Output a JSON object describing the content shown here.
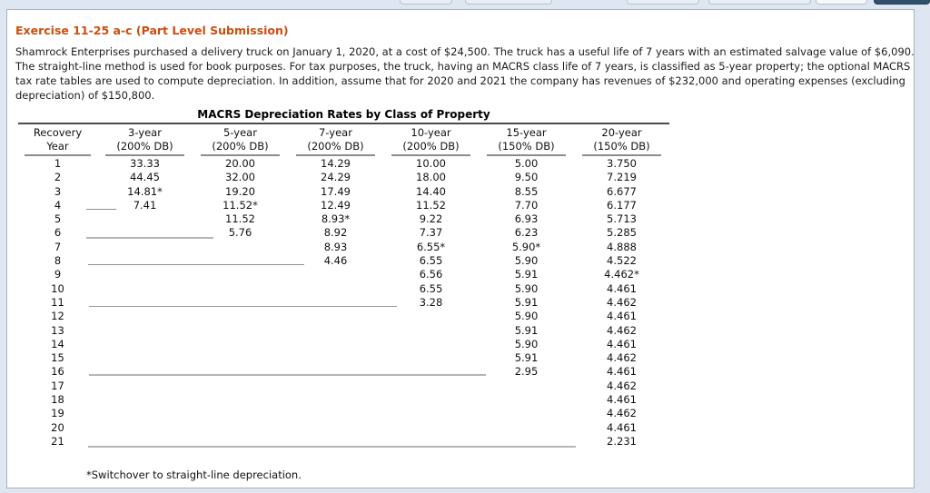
{
  "exercise": {
    "title": "Exercise 11-25 a-c (Part Level Submission)",
    "description": "Shamrock Enterprises purchased a delivery truck on January 1, 2020, at a cost of $24,500. The truck has a useful life of 7 years with an estimated salvage value of $6,090. The straight-line method is used for book purposes. For tax purposes, the truck, having an MACRS class life of 7 years, is classified as 5-year property; the optional MACRS tax rate tables are used to compute depreciation. In addition, assume that for 2020 and 2021 the company has revenues of $232,000 and operating expenses (excluding depreciation) of $150,800."
  },
  "table": {
    "title": "MACRS Depreciation Rates by Class of Property",
    "columns": [
      {
        "line1": "Recovery",
        "line2": "Year"
      },
      {
        "line1": "3-year",
        "line2": "(200% DB)"
      },
      {
        "line1": "5-year",
        "line2": "(200% DB)"
      },
      {
        "line1": "7-year",
        "line2": "(200% DB)"
      },
      {
        "line1": "10-year",
        "line2": "(200% DB)"
      },
      {
        "line1": "15-year",
        "line2": "(150% DB)"
      },
      {
        "line1": "20-year",
        "line2": "(150% DB)"
      }
    ],
    "rows": [
      {
        "year": "1",
        "values": [
          "33.33",
          "20.00",
          "14.29",
          "10.00",
          "5.00",
          "3.750"
        ]
      },
      {
        "year": "2",
        "values": [
          "44.45",
          "32.00",
          "24.29",
          "18.00",
          "9.50",
          "7.219"
        ]
      },
      {
        "year": "3",
        "values": [
          "14.81*",
          "19.20",
          "17.49",
          "14.40",
          "8.55",
          "6.677"
        ]
      },
      {
        "year": "4",
        "values": [
          "7.41",
          "11.52*",
          "12.49",
          "11.52",
          "7.70",
          "6.177"
        ]
      },
      {
        "year": "5",
        "values": [
          "",
          "11.52",
          "8.93*",
          "9.22",
          "6.93",
          "5.713"
        ]
      },
      {
        "year": "6",
        "values": [
          "",
          "5.76",
          "8.92",
          "7.37",
          "6.23",
          "5.285"
        ]
      },
      {
        "year": "7",
        "values": [
          "",
          "",
          "8.93",
          "6.55*",
          "5.90*",
          "4.888"
        ]
      },
      {
        "year": "8",
        "values": [
          "",
          "",
          "4.46",
          "6.55",
          "5.90",
          "4.522"
        ]
      },
      {
        "year": "9",
        "values": [
          "",
          "",
          "",
          "6.56",
          "5.91",
          "4.462*"
        ]
      },
      {
        "year": "10",
        "values": [
          "",
          "",
          "",
          "6.55",
          "5.90",
          "4.461"
        ]
      },
      {
        "year": "11",
        "values": [
          "",
          "",
          "",
          "3.28",
          "5.91",
          "4.462"
        ]
      },
      {
        "year": "12",
        "values": [
          "",
          "",
          "",
          "",
          "5.90",
          "4.461"
        ]
      },
      {
        "year": "13",
        "values": [
          "",
          "",
          "",
          "",
          "5.91",
          "4.462"
        ]
      },
      {
        "year": "14",
        "values": [
          "",
          "",
          "",
          "",
          "5.90",
          "4.461"
        ]
      },
      {
        "year": "15",
        "values": [
          "",
          "",
          "",
          "",
          "5.91",
          "4.462"
        ]
      },
      {
        "year": "16",
        "values": [
          "",
          "",
          "",
          "",
          "2.95",
          "4.461"
        ]
      },
      {
        "year": "17",
        "values": [
          "",
          "",
          "",
          "",
          "",
          "4.462"
        ]
      },
      {
        "year": "18",
        "values": [
          "",
          "",
          "",
          "",
          "",
          "4.461"
        ]
      },
      {
        "year": "19",
        "values": [
          "",
          "",
          "",
          "",
          "",
          "4.462"
        ]
      },
      {
        "year": "20",
        "values": [
          "",
          "",
          "",
          "",
          "",
          "4.461"
        ]
      },
      {
        "year": "21",
        "values": [
          "",
          "",
          "",
          "",
          "",
          "2.231"
        ]
      }
    ],
    "footnote": "*Switchover to straight-line depreciation."
  },
  "colors": {
    "exercise_title": "#cc4e0f",
    "page_background": "#dee7f1",
    "panel_border": "#a6b2c0",
    "navy_button": "#30506f",
    "rule_dark": "#4a4a4a",
    "rule_gray": "#8c8c8c"
  }
}
